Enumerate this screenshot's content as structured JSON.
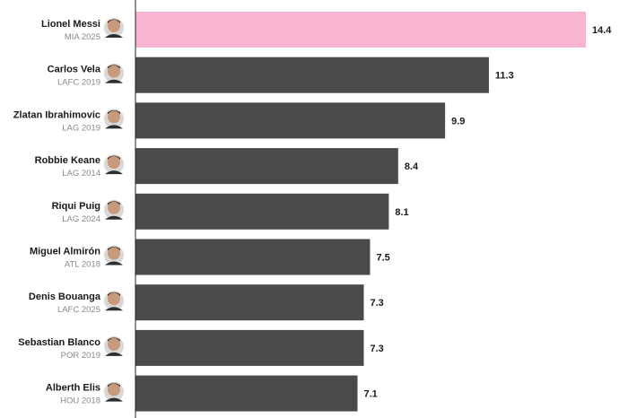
{
  "chart_data": {
    "type": "bar",
    "orientation": "horizontal",
    "title": "",
    "xlabel": "",
    "ylabel": "",
    "categories": [
      {
        "name": "Lionel Messi",
        "team": "MIA 2025",
        "value": 14.4,
        "highlight": true
      },
      {
        "name": "Carlos Vela",
        "team": "LAFC 2019",
        "value": 11.3,
        "highlight": false
      },
      {
        "name": "Zlatan Ibrahimovic",
        "team": "LAG 2019",
        "value": 9.9,
        "highlight": false
      },
      {
        "name": "Robbie Keane",
        "team": "LAG 2014",
        "value": 8.4,
        "highlight": false
      },
      {
        "name": "Riqui Puig",
        "team": "LAG 2024",
        "value": 8.1,
        "highlight": false
      },
      {
        "name": "Miguel Almirón",
        "team": "ATL 2018",
        "value": 7.5,
        "highlight": false
      },
      {
        "name": "Denis Bouanga",
        "team": "LAFC 2025",
        "value": 7.3,
        "highlight": false
      },
      {
        "name": "Sebastian Blanco",
        "team": "POR 2019",
        "value": 7.3,
        "highlight": false
      },
      {
        "name": "Alberth Elis",
        "team": "HOU 2018",
        "value": 7.1,
        "highlight": false
      }
    ],
    "xlim": [
      0,
      14.4
    ],
    "grid": false,
    "colors": {
      "highlight": "#f8b4d0",
      "default": "#4a4a4a",
      "axis": "#222222"
    }
  }
}
